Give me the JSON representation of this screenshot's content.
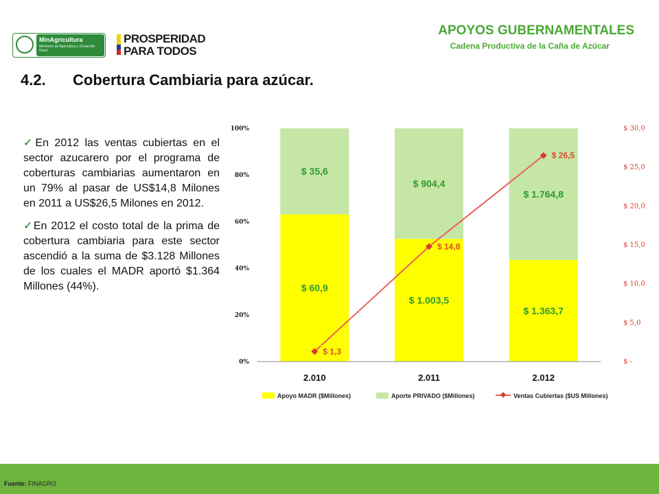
{
  "header": {
    "title": "APOYOS GUBERNAMENTALES",
    "subtitle": "Cadena Productiva de la Caña de Azúcar",
    "logos": {
      "madr_name": "MinAgricultura",
      "madr_sub": "Ministerio de Agricultura y Desarrollo Rural",
      "pp_line1": "PROSPERIDAD",
      "pp_line2": "PARA TODOS"
    }
  },
  "section": {
    "number": "4.2.",
    "title": "Cobertura Cambiaria para azúcar."
  },
  "bullets": [
    "En 2012 las ventas cubiertas en el sector azucarero por el programa de coberturas cambiarias aumentaron en un 79% al pasar de US$14,8 Milones en 2011 a US$26,5 Milones en 2012.",
    "En 2012 el costo total de la prima de cobertura cambiaria para este sector ascendió a la suma de $3.128 Millones de los cuales el MADR aportó $1.364 Millones (44%)."
  ],
  "chart_data": {
    "type": "bar",
    "stacked": "percent",
    "categories": [
      "2.010",
      "2.011",
      "2.012"
    ],
    "series": [
      {
        "name": "Apoyo MADR ($Millones)",
        "values": [
          60.9,
          1003.5,
          1363.7
        ],
        "labels": [
          "$ 60,9",
          "$ 1.003,5",
          "$ 1.363,7"
        ],
        "color": "#ffff00"
      },
      {
        "name": "Aporte PRIVADO ($Millones)",
        "values": [
          35.6,
          904.4,
          1764.8
        ],
        "labels": [
          "$ 35,6",
          "$ 904,4",
          "$ 1.764,8"
        ],
        "color": "#c6e6a6"
      }
    ],
    "line": {
      "name": "Ventas Cubiertas ($US Millones)",
      "values": [
        1.3,
        14.8,
        26.5
      ],
      "labels": [
        "$ 1,3",
        "$ 14,8",
        "$ 26,5"
      ],
      "color": "#e8615a"
    },
    "left_axis": {
      "ticks": [
        "0%",
        "20%",
        "40%",
        "60%",
        "80%",
        "100%"
      ],
      "ylim": [
        0,
        100
      ]
    },
    "right_axis": {
      "ticks": [
        "$ -",
        "$ 5,0",
        "$ 10,0",
        "$ 15,0",
        "$ 20,0",
        "$ 25,0",
        "$ 30,0"
      ],
      "ylim": [
        0,
        30
      ],
      "color": "#d83b2f"
    },
    "value_label_color": "#2e9a2e",
    "line_label_color": "#e04a2a",
    "legend_position": "bottom"
  },
  "footer": {
    "label": "Fuente:",
    "source": "FINAGRO"
  }
}
